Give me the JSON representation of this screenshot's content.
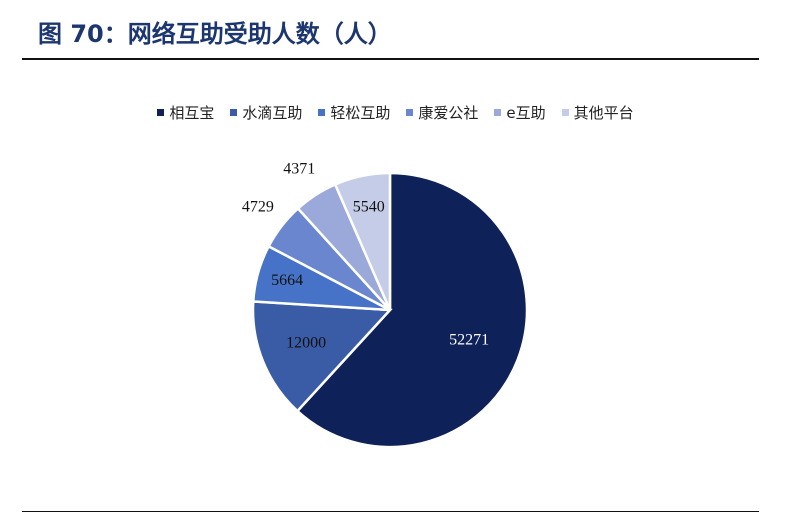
{
  "chart_data": {
    "type": "pie",
    "title": "图 70：网络互助受助人数（人）",
    "categories": [
      "相互宝",
      "水滴互助",
      "轻松互助",
      "康爱公社",
      "e互助",
      "其他平台"
    ],
    "values": [
      52271,
      12000,
      5664,
      4729,
      4371,
      5540
    ],
    "colors": [
      "#0e2159",
      "#3a5ba6",
      "#4673c8",
      "#6a86cf",
      "#9aa9d9",
      "#c4cce7"
    ],
    "legend": "top"
  }
}
